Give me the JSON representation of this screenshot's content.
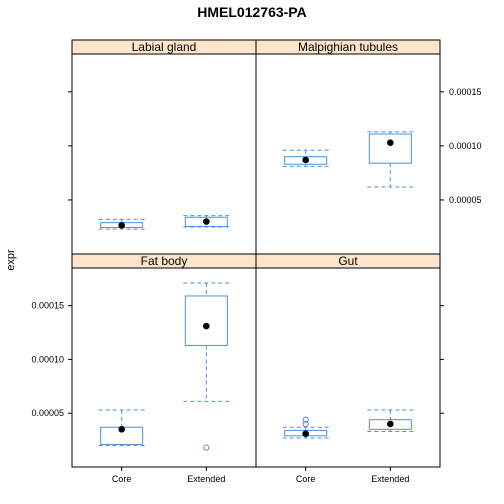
{
  "chart_data": {
    "type": "box",
    "title": "HMEL012763-PA",
    "ylabel": "expr",
    "xlabel": "",
    "categories": [
      "Core",
      "Extended"
    ],
    "y_ticks": [
      "0.00005",
      "0.00010",
      "0.00015"
    ],
    "y_tick_values": [
      5e-05,
      0.0001,
      0.00015
    ],
    "ylim": [
      0.0,
      0.000185
    ],
    "colors": {
      "box": "#4a90e2",
      "strip": "#ffe5cc",
      "median": "#000000"
    },
    "panels": [
      {
        "name": "Labial gland",
        "boxes": [
          {
            "category": "Core",
            "whisker_low": 2.3e-05,
            "q1": 2.45e-05,
            "median": 2.65e-05,
            "q3": 2.9e-05,
            "whisker_high": 3.2e-05,
            "outliers": []
          },
          {
            "category": "Extended",
            "whisker_low": 2.5e-05,
            "q1": 2.55e-05,
            "median": 3e-05,
            "q3": 3.4e-05,
            "whisker_high": 3.55e-05,
            "outliers": []
          }
        ]
      },
      {
        "name": "Malpighian tubules",
        "boxes": [
          {
            "category": "Core",
            "whisker_low": 8.1e-05,
            "q1": 8.3e-05,
            "median": 8.7e-05,
            "q3": 9e-05,
            "whisker_high": 9.6e-05,
            "outliers": []
          },
          {
            "category": "Extended",
            "whisker_low": 6.2e-05,
            "q1": 8.4e-05,
            "median": 0.000103,
            "q3": 0.000111,
            "whisker_high": 0.000113,
            "outliers": []
          }
        ]
      },
      {
        "name": "Fat body",
        "boxes": [
          {
            "category": "Core",
            "whisker_low": 2e-05,
            "q1": 2.1e-05,
            "median": 3.5e-05,
            "q3": 3.7e-05,
            "whisker_high": 5.3e-05,
            "outliers": []
          },
          {
            "category": "Extended",
            "whisker_low": 6.1e-05,
            "q1": 0.000113,
            "median": 0.000131,
            "q3": 0.000159,
            "whisker_high": 0.000171,
            "outliers": [
              1.8e-05
            ]
          }
        ]
      },
      {
        "name": "Gut",
        "boxes": [
          {
            "category": "Core",
            "whisker_low": 2.7e-05,
            "q1": 2.9e-05,
            "median": 3.1e-05,
            "q3": 3.4e-05,
            "whisker_high": 3.7e-05,
            "outliers": [
              4e-05,
              4.4e-05
            ]
          },
          {
            "category": "Extended",
            "whisker_low": 3.3e-05,
            "q1": 3.5e-05,
            "median": 4e-05,
            "q3": 4.4e-05,
            "whisker_high": 5.3e-05,
            "outliers": []
          }
        ]
      }
    ]
  }
}
